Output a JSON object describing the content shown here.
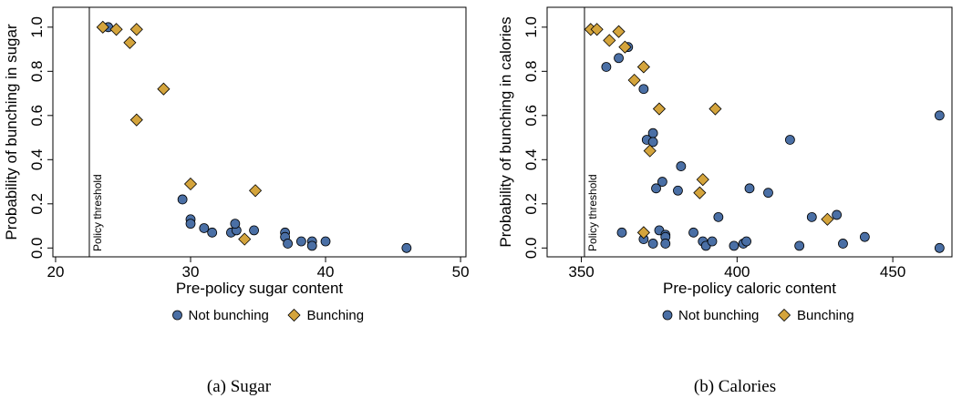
{
  "colors": {
    "not_bunching": "#4a6fa5",
    "bunching": "#d4a43c"
  },
  "chart_data": [
    {
      "type": "scatter",
      "caption": "(a)  Sugar",
      "xlabel": "Pre-policy sugar content",
      "ylabel": "Probability of bunching in sugar",
      "xlim": [
        19.8,
        50.4
      ],
      "ylim": [
        -0.04,
        1.09
      ],
      "xticks": [
        20,
        30,
        40,
        50
      ],
      "yticks": [
        0.0,
        0.2,
        0.4,
        0.6,
        0.8,
        1.0
      ],
      "xtick_labels": [
        "20",
        "30",
        "40",
        "50"
      ],
      "ytick_labels": [
        "0.0",
        "0.2",
        "0.4",
        "0.6",
        "0.8",
        "1.0"
      ],
      "threshold": {
        "x": 22.5,
        "label": "Policy threshold"
      },
      "legend": {
        "position": "bottom",
        "entries": [
          "Not bunching",
          "Bunching"
        ]
      },
      "series": [
        {
          "name": "Not bunching",
          "marker": "circle",
          "points": [
            [
              23.9,
              1.0
            ],
            [
              29.4,
              0.22
            ],
            [
              30.0,
              0.13
            ],
            [
              30.0,
              0.11
            ],
            [
              31.0,
              0.09
            ],
            [
              31.6,
              0.07
            ],
            [
              33.0,
              0.07
            ],
            [
              33.4,
              0.08
            ],
            [
              33.3,
              0.11
            ],
            [
              34.7,
              0.08
            ],
            [
              37.0,
              0.07
            ],
            [
              37.0,
              0.05
            ],
            [
              37.2,
              0.02
            ],
            [
              38.2,
              0.03
            ],
            [
              39.0,
              0.03
            ],
            [
              39.0,
              0.01
            ],
            [
              40.0,
              0.03
            ],
            [
              46.0,
              0.0
            ]
          ]
        },
        {
          "name": "Bunching",
          "marker": "diamond",
          "points": [
            [
              23.5,
              1.0
            ],
            [
              24.5,
              0.99
            ],
            [
              26.0,
              0.99
            ],
            [
              25.5,
              0.93
            ],
            [
              28.0,
              0.72
            ],
            [
              26.0,
              0.58
            ],
            [
              30.0,
              0.29
            ],
            [
              34.8,
              0.26
            ],
            [
              34.0,
              0.04
            ]
          ]
        }
      ]
    },
    {
      "type": "scatter",
      "caption": "(b)  Calories",
      "xlabel": "Pre-policy caloric content",
      "ylabel": "Probability of bunching in calories",
      "xlim": [
        339,
        469
      ],
      "ylim": [
        -0.04,
        1.09
      ],
      "xticks": [
        350,
        400,
        450
      ],
      "yticks": [
        0.0,
        0.2,
        0.4,
        0.6,
        0.8,
        1.0
      ],
      "xtick_labels": [
        "350",
        "400",
        "450"
      ],
      "ytick_labels": [
        "0.0",
        "0.2",
        "0.4",
        "0.6",
        "0.8",
        "1.0"
      ],
      "threshold": {
        "x": 351,
        "label": "Policy threshold"
      },
      "legend": {
        "position": "bottom",
        "entries": [
          "Not bunching",
          "Bunching"
        ]
      },
      "series": [
        {
          "name": "Not bunching",
          "marker": "circle",
          "points": [
            [
              358,
              0.82
            ],
            [
              362,
              0.86
            ],
            [
              365,
              0.91
            ],
            [
              370,
              0.72
            ],
            [
              371,
              0.49
            ],
            [
              373,
              0.52
            ],
            [
              373,
              0.48
            ],
            [
              374,
              0.27
            ],
            [
              376,
              0.3
            ],
            [
              381,
              0.26
            ],
            [
              382,
              0.37
            ],
            [
              386,
              0.07
            ],
            [
              394,
              0.14
            ],
            [
              404,
              0.27
            ],
            [
              410,
              0.25
            ],
            [
              417,
              0.49
            ],
            [
              424,
              0.14
            ],
            [
              432,
              0.15
            ],
            [
              441,
              0.05
            ],
            [
              465,
              0.6
            ],
            [
              363,
              0.07
            ],
            [
              370,
              0.04
            ],
            [
              373,
              0.02
            ],
            [
              375,
              0.08
            ],
            [
              377,
              0.06
            ],
            [
              377,
              0.05
            ],
            [
              377,
              0.02
            ],
            [
              389,
              0.03
            ],
            [
              390,
              0.01
            ],
            [
              392,
              0.03
            ],
            [
              399,
              0.01
            ],
            [
              402,
              0.02
            ],
            [
              403,
              0.03
            ],
            [
              420,
              0.01
            ],
            [
              434,
              0.02
            ],
            [
              465,
              0.0
            ]
          ]
        },
        {
          "name": "Bunching",
          "marker": "diamond",
          "points": [
            [
              353,
              0.99
            ],
            [
              355,
              0.99
            ],
            [
              359,
              0.94
            ],
            [
              362,
              0.98
            ],
            [
              364,
              0.91
            ],
            [
              370,
              0.82
            ],
            [
              367,
              0.76
            ],
            [
              375,
              0.63
            ],
            [
              393,
              0.63
            ],
            [
              372,
              0.44
            ],
            [
              389,
              0.31
            ],
            [
              388,
              0.25
            ],
            [
              370,
              0.07
            ],
            [
              429,
              0.13
            ]
          ]
        }
      ]
    }
  ]
}
